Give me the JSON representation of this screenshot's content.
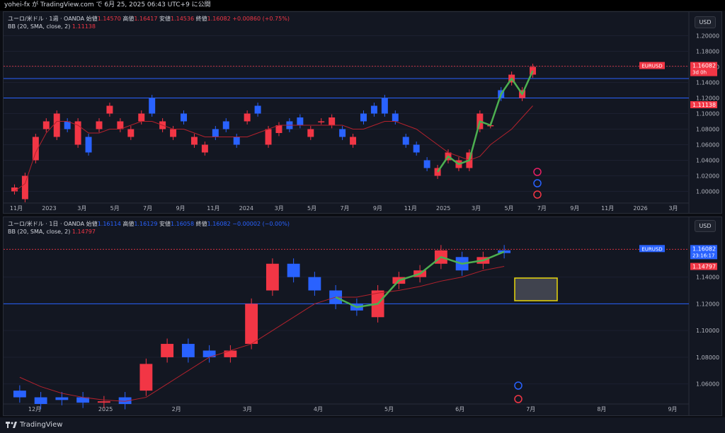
{
  "header": {
    "publish_text": "yohei-fx が TradingView.com で 6月 25, 2025 06:43 UTC+9 に公開"
  },
  "footer": {
    "brand": "TradingView"
  },
  "colors": {
    "up": "#f23645",
    "down": "#2962ff",
    "bb_mid": "#b2222d",
    "highlight": "#4caf50",
    "hline": "#2962ff",
    "box": "#e8d70b"
  },
  "weekly": {
    "symbol_title": "ユーロ/米ドル · 1週 · OANDA",
    "open_label": "始値",
    "open": "1.14570",
    "high_label": "高値",
    "high": "1.16417",
    "low_label": "安値",
    "low": "1.14536",
    "close_label": "終値",
    "close": "1.16082",
    "change": "+0.00860 (+0.75%)",
    "indicator_label": "BB (20, SMA, close, 2)",
    "indicator_value": "1.11138",
    "currency": "USD",
    "price_ticks": [
      "1.20000",
      "1.18000",
      "1.16000",
      "1.14000",
      "1.12000",
      "1.10000",
      "1.08000",
      "1.06000",
      "1.04000",
      "1.02000",
      "1.00000"
    ],
    "time_labels": [
      "11月",
      "2023",
      "3月",
      "5月",
      "7月",
      "9月",
      "11月",
      "2024",
      "3月",
      "5月",
      "7月",
      "9月",
      "11月",
      "2025",
      "3月",
      "5月",
      "7月",
      "9月",
      "11月",
      "2026",
      "3月"
    ],
    "symbol_badge": "EURUSD",
    "price_badge": "1.16082",
    "countdown": "3d 0h",
    "bb_badge": "1.11138",
    "hlines": [
      1.145,
      1.12
    ],
    "chart_data": {
      "type": "candlestick",
      "timeframe": "1W",
      "series": "EURUSD",
      "ylim": [
        0.985,
        1.205
      ],
      "points": [
        [
          1.0,
          1.005
        ],
        [
          0.99,
          1.02
        ],
        [
          1.04,
          1.07
        ],
        [
          1.08,
          1.09
        ],
        [
          1.07,
          1.1
        ],
        [
          1.09,
          1.08
        ],
        [
          1.06,
          1.09
        ],
        [
          1.07,
          1.05
        ],
        [
          1.08,
          1.09
        ],
        [
          1.1,
          1.11
        ],
        [
          1.08,
          1.09
        ],
        [
          1.07,
          1.08
        ],
        [
          1.09,
          1.1
        ],
        [
          1.12,
          1.1
        ],
        [
          1.08,
          1.09
        ],
        [
          1.07,
          1.08
        ],
        [
          1.1,
          1.09
        ],
        [
          1.06,
          1.07
        ],
        [
          1.05,
          1.06
        ],
        [
          1.08,
          1.07
        ],
        [
          1.09,
          1.08
        ],
        [
          1.07,
          1.06
        ],
        [
          1.09,
          1.1
        ],
        [
          1.11,
          1.1
        ],
        [
          1.06,
          1.08
        ],
        [
          1.075,
          1.085
        ],
        [
          1.09,
          1.08
        ],
        [
          1.095,
          1.085
        ],
        [
          1.07,
          1.08
        ],
        [
          1.09,
          1.09
        ],
        [
          1.085,
          1.095
        ],
        [
          1.08,
          1.07
        ],
        [
          1.06,
          1.07
        ],
        [
          1.1,
          1.09
        ],
        [
          1.11,
          1.1
        ],
        [
          1.12,
          1.1
        ],
        [
          1.1,
          1.09
        ],
        [
          1.07,
          1.06
        ],
        [
          1.06,
          1.05
        ],
        [
          1.04,
          1.03
        ],
        [
          1.02,
          1.03
        ],
        [
          1.04,
          1.05
        ],
        [
          1.03,
          1.04
        ],
        [
          1.03,
          1.05
        ],
        [
          1.08,
          1.1
        ],
        [
          1.085,
          1.085
        ],
        [
          1.13,
          1.12
        ],
        [
          1.14,
          1.15
        ],
        [
          1.12,
          1.13
        ],
        [
          1.15,
          1.16
        ]
      ],
      "bb_mid": [
        1.0,
        1.01,
        1.05,
        1.075,
        1.09,
        1.09,
        1.085,
        1.075,
        1.075,
        1.08,
        1.08,
        1.085,
        1.09,
        1.09,
        1.085,
        1.08,
        1.08,
        1.075,
        1.07,
        1.07,
        1.07,
        1.07,
        1.07,
        1.075,
        1.08,
        1.085,
        1.085,
        1.085,
        1.085,
        1.085,
        1.085,
        1.085,
        1.08,
        1.08,
        1.085,
        1.09,
        1.09,
        1.085,
        1.08,
        1.07,
        1.06,
        1.05,
        1.045,
        1.04,
        1.045,
        1.06,
        1.07,
        1.08,
        1.095,
        1.11
      ]
    }
  },
  "daily": {
    "symbol_title": "ユーロ/米ドル · 1日 · OANDA",
    "open_label": "始値",
    "open": "1.16114",
    "high_label": "高値",
    "high": "1.16129",
    "low_label": "安値",
    "low": "1.16058",
    "close_label": "終値",
    "close": "1.16082",
    "change": "−0.00002 (−0.00%)",
    "indicator_label": "BB (20, SMA, close, 2)",
    "indicator_value": "1.14797",
    "currency": "USD",
    "price_ticks": [
      "1.14000",
      "1.12000",
      "1.10000",
      "1.08000",
      "1.06000"
    ],
    "time_labels": [
      "12月",
      "2025",
      "2月",
      "3月",
      "4月",
      "5月",
      "6月",
      "7月",
      "8月",
      "9月"
    ],
    "symbol_badge": "EURUSD",
    "price_badge": "1.16082",
    "countdown": "23:16:17",
    "bb_badge": "1.14797",
    "hlines": [
      1.12
    ],
    "chart_data": {
      "type": "candlestick",
      "timeframe": "1D",
      "series": "EURUSD",
      "ylim": [
        1.045,
        1.17
      ],
      "points": [
        [
          1.055,
          1.05
        ],
        [
          1.05,
          1.045
        ],
        [
          1.05,
          1.048
        ],
        [
          1.05,
          1.046
        ],
        [
          1.046,
          1.047
        ],
        [
          1.05,
          1.045
        ],
        [
          1.055,
          1.075
        ],
        [
          1.08,
          1.09
        ],
        [
          1.09,
          1.08
        ],
        [
          1.085,
          1.08
        ],
        [
          1.08,
          1.085
        ],
        [
          1.09,
          1.12
        ],
        [
          1.13,
          1.15
        ],
        [
          1.15,
          1.14
        ],
        [
          1.14,
          1.13
        ],
        [
          1.13,
          1.12
        ],
        [
          1.12,
          1.115
        ],
        [
          1.11,
          1.13
        ],
        [
          1.135,
          1.14
        ],
        [
          1.14,
          1.145
        ],
        [
          1.15,
          1.16
        ],
        [
          1.155,
          1.145
        ],
        [
          1.15,
          1.155
        ],
        [
          1.16,
          1.158
        ]
      ],
      "bb_mid": [
        1.065,
        1.058,
        1.053,
        1.05,
        1.048,
        1.047,
        1.05,
        1.06,
        1.07,
        1.08,
        1.085,
        1.09,
        1.1,
        1.11,
        1.12,
        1.125,
        1.125,
        1.128,
        1.13,
        1.133,
        1.137,
        1.14,
        1.145,
        1.148
      ]
    }
  }
}
